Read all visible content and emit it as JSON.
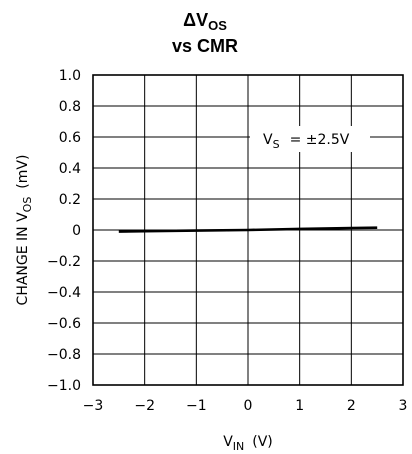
{
  "chart_data": {
    "type": "line",
    "title_main": "ΔV",
    "title_sub": "OS",
    "title_line2": "vs CMR",
    "ylabel_main": "CHANGE IN V",
    "ylabel_sub": "OS",
    "ylabel_unit": "(mV)",
    "xlabel_main": "V",
    "xlabel_sub": "IN",
    "xlabel_unit": "(V)",
    "annotation": {
      "main": "V",
      "sub": "S",
      "rest": "= ±2.5V"
    },
    "xlim": [
      -3,
      3
    ],
    "ylim": [
      -1.0,
      1.0
    ],
    "xticks": [
      "−3",
      "−2",
      "−1",
      "0",
      "1",
      "2",
      "3"
    ],
    "yticks": [
      "1.0",
      "0.8",
      "0.6",
      "0.4",
      "0.2",
      "0",
      "−0.2",
      "−0.4",
      "−0.6",
      "−0.8",
      "−1.0"
    ],
    "grid": true,
    "series": [
      {
        "x": [
          -2.5,
          -2.0,
          -1.0,
          0.0,
          1.0,
          2.0,
          2.5
        ],
        "y": [
          -0.01,
          -0.008,
          -0.004,
          0.0,
          0.007,
          0.013,
          0.015
        ]
      }
    ]
  }
}
